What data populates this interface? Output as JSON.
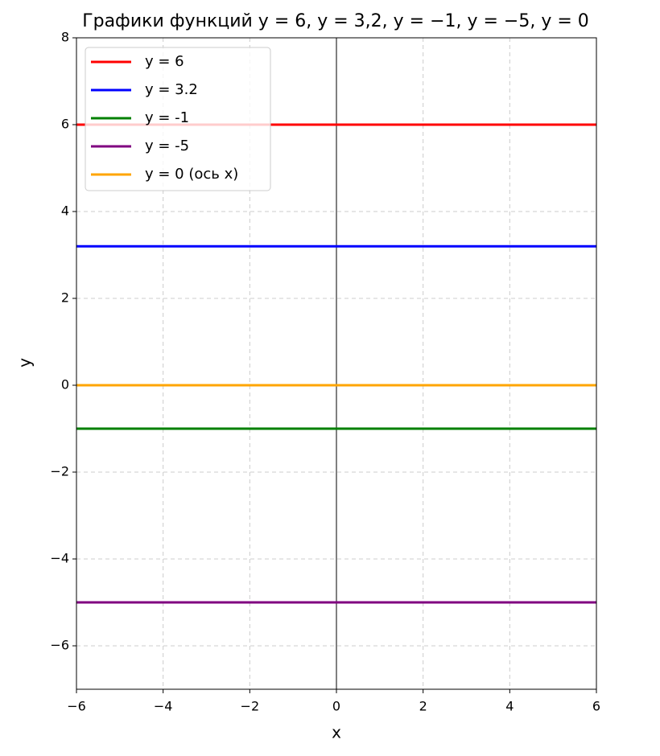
{
  "chart_data": {
    "type": "line",
    "title": "Графики функций y = 6, y = 3,2, y = −1, y = −5, y = 0",
    "x_label": "x",
    "y_label": "y",
    "x": [
      -6,
      6
    ],
    "series": [
      {
        "name": "y = 6",
        "color": "#ff0000",
        "values": [
          6,
          6
        ]
      },
      {
        "name": "y = 3.2",
        "color": "#0000ff",
        "values": [
          3.2,
          3.2
        ]
      },
      {
        "name": "y = -1",
        "color": "#008000",
        "values": [
          -1,
          -1
        ]
      },
      {
        "name": "y = -5",
        "color": "#800080",
        "values": [
          -5,
          -5
        ]
      },
      {
        "name": "y = 0 (ось x)",
        "color": "#ffa500",
        "values": [
          0,
          0
        ]
      }
    ],
    "axhline": 0,
    "axvline": 0,
    "xlim": [
      -6,
      6
    ],
    "xticks": [
      {
        "value": -6,
        "label": "−6"
      },
      {
        "value": -4,
        "label": "−4"
      },
      {
        "value": -2,
        "label": "−2"
      },
      0,
      2,
      4,
      6
    ],
    "ylim": [
      -7,
      8
    ],
    "yticks": [
      {
        "value": -6,
        "label": "−6"
      },
      {
        "value": -4,
        "label": "−4"
      },
      {
        "value": -2,
        "label": "−2"
      },
      0,
      2,
      4,
      6,
      8
    ],
    "grid": true,
    "legend": "upper-left"
  }
}
